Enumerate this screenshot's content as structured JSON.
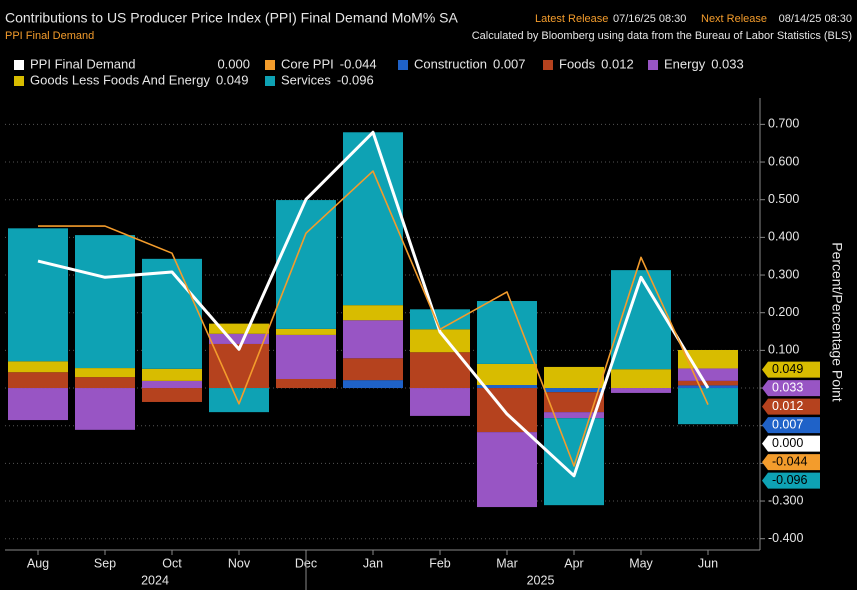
{
  "chart_data": {
    "type": "bar",
    "title": "Contributions to US Producer Price Index (PPI) Final Demand MoM% SA",
    "subtitle": "PPI Final Demand",
    "latest_release_label": "Latest Release",
    "latest_release": "07/16/25 08:30",
    "next_release_label": "Next Release",
    "next_release": "08/14/25 08:30",
    "source": "Calculated by Bloomberg using data from the Bureau of Labor Statistics (BLS)",
    "y_label": "Percent/Percentage Point",
    "categories": [
      "Aug",
      "Sep",
      "Oct",
      "Nov",
      "Dec",
      "Jan",
      "Feb",
      "Mar",
      "Apr",
      "May",
      "Jun"
    ],
    "years": [
      "2024",
      "2025"
    ],
    "ylim": [
      -0.43,
      0.77
    ],
    "yticks": [
      {
        "value": -0.4,
        "label": "-0.400"
      },
      {
        "value": -0.3,
        "label": "-0.300"
      },
      {
        "value": -0.2,
        "label": "-0.200"
      },
      {
        "value": -0.1,
        "label": "-0.100"
      },
      {
        "value": 0,
        "label": "0.000"
      },
      {
        "value": 0.1,
        "label": "0.100"
      },
      {
        "value": 0.2,
        "label": "0.200"
      },
      {
        "value": 0.3,
        "label": "0.300"
      },
      {
        "value": 0.4,
        "label": "0.400"
      },
      {
        "value": 0.5,
        "label": "0.500"
      },
      {
        "value": 0.6,
        "label": "0.600"
      },
      {
        "value": 0.7,
        "label": "0.700"
      }
    ],
    "grid": true,
    "series": [
      {
        "name": "PPI Final Demand",
        "type": "line",
        "color": "#ffffff",
        "latest": "0.000",
        "values": [
          0.337,
          0.294,
          0.308,
          0.103,
          0.501,
          0.679,
          0.149,
          -0.069,
          -0.233,
          0.294,
          0.0
        ]
      },
      {
        "name": "Core PPI",
        "type": "line",
        "color": "#f39c2c",
        "latest": "-0.044",
        "values": [
          0.43,
          0.43,
          0.358,
          -0.042,
          0.411,
          0.576,
          0.156,
          0.255,
          -0.207,
          0.347,
          -0.044
        ]
      },
      {
        "name": "Construction",
        "type": "bar",
        "color": "#1f62c8",
        "latest": "0.007",
        "values": [
          0,
          0,
          0,
          0,
          0,
          0.021,
          0,
          0.008,
          -0.011,
          0,
          0.007
        ]
      },
      {
        "name": "Foods",
        "type": "bar",
        "color": "#b5421e",
        "latest": "0.012",
        "values": [
          0.042,
          0.029,
          -0.037,
          0.117,
          0.024,
          0.058,
          0.095,
          -0.117,
          -0.053,
          0,
          0.012
        ]
      },
      {
        "name": "Energy",
        "type": "bar",
        "color": "#9855c4",
        "latest": "0.033",
        "values": [
          -0.085,
          -0.111,
          0.019,
          0.027,
          0.117,
          0.101,
          -0.074,
          -0.199,
          -0.016,
          -0.013,
          0.033
        ]
      },
      {
        "name": "Goods Less Foods And Energy",
        "type": "bar",
        "color": "#d8bc00",
        "latest": "0.049",
        "values": [
          0.029,
          0.024,
          0.032,
          0.027,
          0.016,
          0.04,
          0.061,
          0.056,
          0.056,
          0.05,
          0.049
        ]
      },
      {
        "name": "Services",
        "type": "bar",
        "color": "#0ea2b4",
        "latest": "-0.096",
        "values": [
          0.353,
          0.353,
          0.292,
          -0.064,
          0.342,
          0.459,
          0.053,
          0.167,
          -0.231,
          0.263,
          -0.096
        ]
      }
    ]
  }
}
